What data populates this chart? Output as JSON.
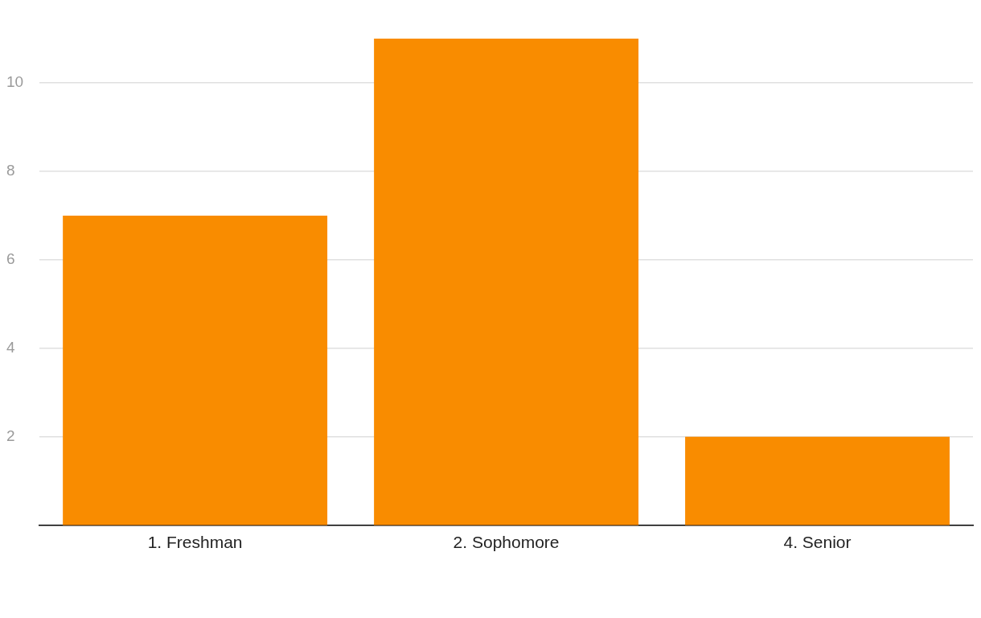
{
  "chart_data": {
    "type": "bar",
    "categories": [
      "1. Freshman",
      "2. Sophomore",
      "4. Senior"
    ],
    "values": [
      7,
      11,
      2
    ],
    "color": "#f98c00",
    "ylim": [
      0,
      11
    ],
    "yticks": [
      2,
      4,
      6,
      8,
      10
    ],
    "grid": "y"
  }
}
